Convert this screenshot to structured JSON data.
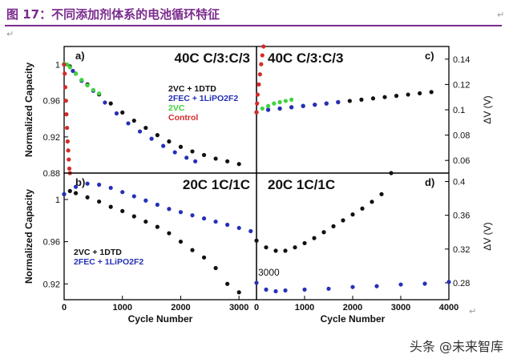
{
  "figure_title": "图 17：不同添加剂体系的电池循环特征",
  "return_glyph": "↵",
  "watermark": "头条 @未来智库",
  "colors": {
    "title": "#7b2c8e",
    "black": "#111111",
    "blue": "#2630b8",
    "green": "#3fd33f",
    "red": "#d62a2a",
    "axis": "#000000"
  },
  "chart_data": [
    {
      "panel": "a)",
      "type": "scatter",
      "condition": "40C C/3:C/3",
      "xlabel": "",
      "ylabel": "Normalized Capacity",
      "xlim": [
        0,
        3300
      ],
      "ylim": [
        0.88,
        1.02
      ],
      "yticks": [
        0.88,
        0.92,
        0.96,
        1
      ],
      "legend": [
        "2VC + 1DTD",
        "2FEC + 1LiPO2F2",
        "2VC",
        "Control"
      ],
      "series": [
        {
          "name": "2VC + 1DTD",
          "color_key": "black",
          "x": [
            0,
            100,
            200,
            400,
            600,
            800,
            1000,
            1200,
            1400,
            1600,
            1800,
            2000,
            2200,
            2400,
            2600,
            2800,
            3000
          ],
          "y": [
            1.0,
            0.998,
            0.99,
            0.978,
            0.967,
            0.957,
            0.947,
            0.938,
            0.93,
            0.922,
            0.915,
            0.909,
            0.904,
            0.9,
            0.896,
            0.893,
            0.89
          ]
        },
        {
          "name": "2FEC + 1LiPO2F2",
          "color_key": "blue",
          "x": [
            0,
            150,
            300,
            500,
            700,
            900,
            1100,
            1300,
            1500,
            1700,
            1900,
            2100,
            2250
          ],
          "y": [
            1.0,
            0.993,
            0.982,
            0.971,
            0.958,
            0.946,
            0.935,
            0.926,
            0.918,
            0.91,
            0.903,
            0.897,
            0.893
          ]
        },
        {
          "name": "2VC",
          "color_key": "green",
          "x": [
            0,
            50,
            100,
            200,
            300,
            400,
            500,
            600
          ],
          "y": [
            1.001,
            1.0,
            0.997,
            0.99,
            0.983,
            0.977,
            0.972,
            0.968
          ]
        },
        {
          "name": "Control",
          "color_key": "red",
          "x": [
            0,
            10,
            20,
            30,
            40,
            50,
            60,
            70,
            80,
            90,
            100
          ],
          "y": [
            1.0,
            0.99,
            0.975,
            0.96,
            0.945,
            0.93,
            0.915,
            0.905,
            0.895,
            0.885,
            0.88
          ]
        }
      ]
    },
    {
      "panel": "c)",
      "type": "scatter",
      "condition": "40C C/3:C/3",
      "xlabel": "",
      "ylabel": "ΔV (V)",
      "xlim": [
        0,
        3300
      ],
      "ylim": [
        0.05,
        0.15
      ],
      "yticks": [
        0.06,
        0.08,
        0.1,
        0.12,
        0.14
      ],
      "series": [
        {
          "name": "2VC + 1DTD",
          "color_key": "black",
          "x": [
            0,
            200,
            400,
            600,
            800,
            1000,
            1200,
            1400,
            1600,
            1800,
            2000,
            2200,
            2400,
            2600,
            2800,
            3000
          ],
          "y": [
            0.098,
            0.1,
            0.101,
            0.102,
            0.103,
            0.104,
            0.105,
            0.106,
            0.107,
            0.108,
            0.109,
            0.11,
            0.111,
            0.112,
            0.113,
            0.114
          ]
        },
        {
          "name": "2FEC + 1LiPO2F2",
          "color_key": "blue",
          "x": [
            0,
            200,
            400,
            600,
            800,
            1000,
            1200,
            1400
          ],
          "y": [
            0.098,
            0.1,
            0.101,
            0.102,
            0.103,
            0.104,
            0.105,
            0.106
          ]
        },
        {
          "name": "2VC",
          "color_key": "green",
          "x": [
            0,
            100,
            200,
            300,
            400,
            500,
            600
          ],
          "y": [
            0.098,
            0.101,
            0.103,
            0.105,
            0.106,
            0.107,
            0.108
          ]
        },
        {
          "name": "Control",
          "color_key": "red",
          "x": [
            0,
            10,
            20,
            40,
            60,
            80,
            100,
            120
          ],
          "y": [
            0.098,
            0.105,
            0.112,
            0.12,
            0.128,
            0.136,
            0.143,
            0.15
          ]
        }
      ]
    },
    {
      "panel": "b)",
      "type": "scatter",
      "condition": "20C 1C/1C",
      "xlabel": "Cycle Number",
      "ylabel": "Normalized Capacity",
      "xlim": [
        0,
        3300
      ],
      "ylim": [
        0.905,
        1.025
      ],
      "yticks": [
        0.92,
        0.96,
        1
      ],
      "xticks": [
        0,
        1000,
        2000,
        3000
      ],
      "legend": [
        "2VC + 1DTD",
        "2FEC + 1LiPO2F2"
      ],
      "series": [
        {
          "name": "2VC + 1DTD",
          "color_key": "black",
          "x": [
            0,
            100,
            200,
            400,
            600,
            800,
            1000,
            1200,
            1400,
            1600,
            1800,
            2000,
            2200,
            2400,
            2600,
            2800,
            3000
          ],
          "y": [
            1.005,
            1.008,
            1.006,
            1.002,
            0.998,
            0.993,
            0.989,
            0.984,
            0.979,
            0.974,
            0.968,
            0.96,
            0.952,
            0.945,
            0.935,
            0.92,
            0.912
          ]
        },
        {
          "name": "2FEC + 1LiPO2F2",
          "color_key": "blue",
          "x": [
            0,
            200,
            400,
            600,
            800,
            1000,
            1200,
            1400,
            1600,
            1800,
            2000,
            2200,
            2400,
            2600,
            2800,
            3000,
            3200
          ],
          "y": [
            1.005,
            1.012,
            1.015,
            1.014,
            1.011,
            1.007,
            1.003,
            0.999,
            0.995,
            0.991,
            0.988,
            0.985,
            0.982,
            0.979,
            0.976,
            0.973,
            0.97
          ]
        }
      ]
    },
    {
      "panel": "d)",
      "type": "scatter",
      "condition": "20C 1C/1C",
      "xlabel": "Cycle Number",
      "ylabel": "ΔV (V)",
      "xlim": [
        0,
        4000
      ],
      "ylim": [
        0.26,
        0.41
      ],
      "yticks": [
        0.28,
        0.32,
        0.36,
        0.4
      ],
      "xticks": [
        0,
        1000,
        2000,
        3000,
        4000
      ],
      "overlay_text": "3000",
      "series": [
        {
          "name": "2VC + 1DTD",
          "color_key": "black",
          "x": [
            0,
            200,
            400,
            600,
            800,
            1000,
            1200,
            1400,
            1600,
            1800,
            2000,
            2200,
            2400,
            2600,
            2800
          ],
          "y": [
            0.33,
            0.322,
            0.318,
            0.318,
            0.322,
            0.327,
            0.333,
            0.34,
            0.347,
            0.354,
            0.361,
            0.368,
            0.376,
            0.385,
            0.41
          ]
        },
        {
          "name": "2FEC + 1LiPO2F2",
          "color_key": "blue",
          "x": [
            0,
            200,
            400,
            600,
            1000,
            1500,
            2000,
            2500,
            3000,
            3500,
            4000
          ],
          "y": [
            0.28,
            0.272,
            0.27,
            0.271,
            0.272,
            0.273,
            0.275,
            0.276,
            0.278,
            0.279,
            0.281
          ]
        }
      ]
    }
  ]
}
